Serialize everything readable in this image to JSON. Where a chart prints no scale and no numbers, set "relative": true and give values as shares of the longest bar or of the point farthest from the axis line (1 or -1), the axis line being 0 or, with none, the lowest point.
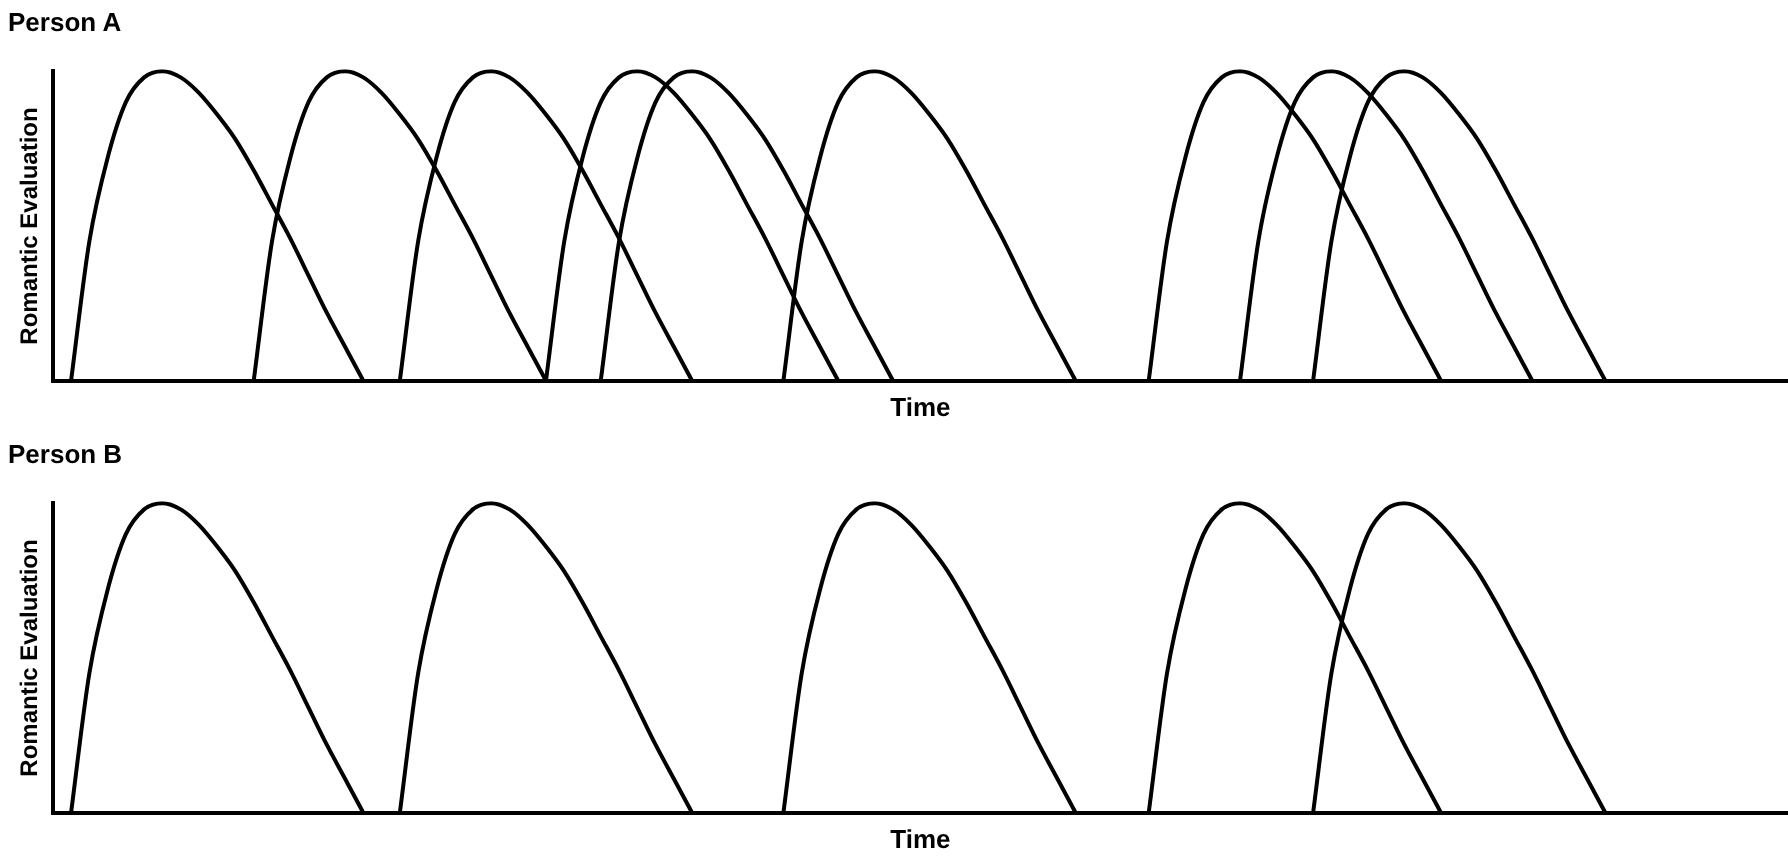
{
  "chart_data": [
    {
      "type": "line",
      "title": "Person A",
      "xlabel": "Time",
      "ylabel": "Romantic Evaluation",
      "relative": true,
      "legend": false,
      "grid": false,
      "tick_labels": false,
      "marker": "none",
      "line_style": "solid",
      "categories": [
        null,
        null,
        null,
        null,
        null,
        null,
        null,
        null,
        null,
        null,
        null,
        null,
        null,
        null,
        null,
        null,
        null,
        null,
        null,
        null,
        null,
        null,
        null,
        null,
        null,
        null,
        null,
        null,
        null,
        null,
        null,
        null,
        null,
        null,
        null,
        null,
        null,
        null,
        null,
        null,
        null,
        null,
        null,
        null,
        null,
        null,
        null,
        null,
        null,
        null,
        null,
        null,
        null,
        null,
        null,
        null,
        null,
        null,
        null,
        null,
        null,
        null,
        null,
        null,
        null,
        null,
        null,
        null,
        null,
        null,
        null,
        null,
        null,
        null,
        null,
        null,
        null,
        null,
        null,
        null,
        null,
        null,
        null,
        null,
        null,
        null,
        null,
        null,
        null,
        null,
        null,
        null,
        null,
        null,
        null,
        null
      ],
      "series": [
        {
          "color": "#000000",
          "values": [
            null,
            0,
            0.45,
            0.72,
            0.9,
            0.98,
            1,
            0.98,
            0.93,
            0.86,
            0.78,
            0.68,
            0.57,
            0.46,
            0.34,
            0.22,
            0.11,
            0,
            null,
            null,
            null,
            null,
            null,
            null,
            null,
            null,
            null,
            null,
            null,
            null,
            null,
            null,
            null,
            null,
            null,
            null,
            null,
            null,
            null,
            null,
            null,
            null,
            null,
            null,
            null,
            null,
            null,
            null,
            null,
            null,
            null,
            null,
            null,
            null,
            null,
            null,
            null,
            null,
            null,
            null,
            null,
            null,
            null,
            null,
            null,
            null,
            null,
            null,
            null,
            null,
            null,
            null,
            null,
            null,
            null,
            null,
            null,
            null,
            null,
            null,
            null,
            null,
            null,
            null,
            null,
            null,
            null,
            null,
            null,
            null,
            null,
            null,
            null,
            null,
            null,
            null
          ]
        },
        {
          "color": "#000000",
          "values": [
            null,
            null,
            null,
            null,
            null,
            null,
            null,
            null,
            null,
            null,
            null,
            0,
            0.45,
            0.72,
            0.9,
            0.98,
            1,
            0.98,
            0.93,
            0.86,
            0.78,
            0.68,
            0.57,
            0.46,
            0.34,
            0.22,
            0.11,
            0,
            null,
            null,
            null,
            null,
            null,
            null,
            null,
            null,
            null,
            null,
            null,
            null,
            null,
            null,
            null,
            null,
            null,
            null,
            null,
            null,
            null,
            null,
            null,
            null,
            null,
            null,
            null,
            null,
            null,
            null,
            null,
            null,
            null,
            null,
            null,
            null,
            null,
            null,
            null,
            null,
            null,
            null,
            null,
            null,
            null,
            null,
            null,
            null,
            null,
            null,
            null,
            null,
            null,
            null,
            null,
            null,
            null,
            null,
            null,
            null,
            null,
            null,
            null,
            null,
            null,
            null,
            null,
            null
          ]
        },
        {
          "color": "#000000",
          "values": [
            null,
            null,
            null,
            null,
            null,
            null,
            null,
            null,
            null,
            null,
            null,
            null,
            null,
            null,
            null,
            null,
            null,
            null,
            null,
            0,
            0.45,
            0.72,
            0.9,
            0.98,
            1,
            0.98,
            0.93,
            0.86,
            0.78,
            0.68,
            0.57,
            0.46,
            0.34,
            0.22,
            0.11,
            0,
            null,
            null,
            null,
            null,
            null,
            null,
            null,
            null,
            null,
            null,
            null,
            null,
            null,
            null,
            null,
            null,
            null,
            null,
            null,
            null,
            null,
            null,
            null,
            null,
            null,
            null,
            null,
            null,
            null,
            null,
            null,
            null,
            null,
            null,
            null,
            null,
            null,
            null,
            null,
            null,
            null,
            null,
            null,
            null,
            null,
            null,
            null,
            null,
            null,
            null,
            null,
            null,
            null,
            null,
            null,
            null,
            null,
            null,
            null,
            null
          ]
        },
        {
          "color": "#000000",
          "values": [
            null,
            null,
            null,
            null,
            null,
            null,
            null,
            null,
            null,
            null,
            null,
            null,
            null,
            null,
            null,
            null,
            null,
            null,
            null,
            null,
            null,
            null,
            null,
            null,
            null,
            null,
            null,
            0,
            0.45,
            0.72,
            0.9,
            0.98,
            1,
            0.98,
            0.93,
            0.86,
            0.78,
            0.68,
            0.57,
            0.46,
            0.34,
            0.22,
            0.11,
            0,
            null,
            null,
            null,
            null,
            null,
            null,
            null,
            null,
            null,
            null,
            null,
            null,
            null,
            null,
            null,
            null,
            null,
            null,
            null,
            null,
            null,
            null,
            null,
            null,
            null,
            null,
            null,
            null,
            null,
            null,
            null,
            null,
            null,
            null,
            null,
            null,
            null,
            null,
            null,
            null,
            null,
            null,
            null,
            null,
            null,
            null,
            null,
            null,
            null,
            null,
            null,
            null
          ]
        },
        {
          "color": "#000000",
          "values": [
            null,
            null,
            null,
            null,
            null,
            null,
            null,
            null,
            null,
            null,
            null,
            null,
            null,
            null,
            null,
            null,
            null,
            null,
            null,
            null,
            null,
            null,
            null,
            null,
            null,
            null,
            null,
            null,
            null,
            null,
            0,
            0.45,
            0.72,
            0.9,
            0.98,
            1,
            0.98,
            0.93,
            0.86,
            0.78,
            0.68,
            0.57,
            0.46,
            0.34,
            0.22,
            0.11,
            0,
            null,
            null,
            null,
            null,
            null,
            null,
            null,
            null,
            null,
            null,
            null,
            null,
            null,
            null,
            null,
            null,
            null,
            null,
            null,
            null,
            null,
            null,
            null,
            null,
            null,
            null,
            null,
            null,
            null,
            null,
            null,
            null,
            null,
            null,
            null,
            null,
            null,
            null,
            null,
            null,
            null,
            null,
            null,
            null,
            null,
            null,
            null,
            null,
            null
          ]
        },
        {
          "color": "#000000",
          "values": [
            null,
            null,
            null,
            null,
            null,
            null,
            null,
            null,
            null,
            null,
            null,
            null,
            null,
            null,
            null,
            null,
            null,
            null,
            null,
            null,
            null,
            null,
            null,
            null,
            null,
            null,
            null,
            null,
            null,
            null,
            null,
            null,
            null,
            null,
            null,
            null,
            null,
            null,
            null,
            null,
            0,
            0.45,
            0.72,
            0.9,
            0.98,
            1,
            0.98,
            0.93,
            0.86,
            0.78,
            0.68,
            0.57,
            0.46,
            0.34,
            0.22,
            0.11,
            0,
            null,
            null,
            null,
            null,
            null,
            null,
            null,
            null,
            null,
            null,
            null,
            null,
            null,
            null,
            null,
            null,
            null,
            null,
            null,
            null,
            null,
            null,
            null,
            null,
            null,
            null,
            null,
            null,
            null,
            null,
            null,
            null,
            null,
            null,
            null,
            null,
            null,
            null,
            null
          ]
        },
        {
          "color": "#000000",
          "values": [
            null,
            null,
            null,
            null,
            null,
            null,
            null,
            null,
            null,
            null,
            null,
            null,
            null,
            null,
            null,
            null,
            null,
            null,
            null,
            null,
            null,
            null,
            null,
            null,
            null,
            null,
            null,
            null,
            null,
            null,
            null,
            null,
            null,
            null,
            null,
            null,
            null,
            null,
            null,
            null,
            null,
            null,
            null,
            null,
            null,
            null,
            null,
            null,
            null,
            null,
            null,
            null,
            null,
            null,
            null,
            null,
            null,
            null,
            null,
            null,
            0,
            0.45,
            0.72,
            0.9,
            0.98,
            1,
            0.98,
            0.93,
            0.86,
            0.78,
            0.68,
            0.57,
            0.46,
            0.34,
            0.22,
            0.11,
            0,
            null,
            null,
            null,
            null,
            null,
            null,
            null,
            null,
            null,
            null,
            null,
            null,
            null,
            null,
            null,
            null,
            null,
            null,
            null
          ]
        },
        {
          "color": "#000000",
          "values": [
            null,
            null,
            null,
            null,
            null,
            null,
            null,
            null,
            null,
            null,
            null,
            null,
            null,
            null,
            null,
            null,
            null,
            null,
            null,
            null,
            null,
            null,
            null,
            null,
            null,
            null,
            null,
            null,
            null,
            null,
            null,
            null,
            null,
            null,
            null,
            null,
            null,
            null,
            null,
            null,
            null,
            null,
            null,
            null,
            null,
            null,
            null,
            null,
            null,
            null,
            null,
            null,
            null,
            null,
            null,
            null,
            null,
            null,
            null,
            null,
            null,
            null,
            null,
            null,
            null,
            0,
            0.45,
            0.72,
            0.9,
            0.98,
            1,
            0.98,
            0.93,
            0.86,
            0.78,
            0.68,
            0.57,
            0.46,
            0.34,
            0.22,
            0.11,
            0,
            null,
            null,
            null,
            null,
            null,
            null,
            null,
            null,
            null,
            null,
            null,
            null,
            null,
            null
          ]
        },
        {
          "color": "#000000",
          "values": [
            null,
            null,
            null,
            null,
            null,
            null,
            null,
            null,
            null,
            null,
            null,
            null,
            null,
            null,
            null,
            null,
            null,
            null,
            null,
            null,
            null,
            null,
            null,
            null,
            null,
            null,
            null,
            null,
            null,
            null,
            null,
            null,
            null,
            null,
            null,
            null,
            null,
            null,
            null,
            null,
            null,
            null,
            null,
            null,
            null,
            null,
            null,
            null,
            null,
            null,
            null,
            null,
            null,
            null,
            null,
            null,
            null,
            null,
            null,
            null,
            null,
            null,
            null,
            null,
            null,
            null,
            null,
            null,
            null,
            0,
            0.45,
            0.72,
            0.9,
            0.98,
            1,
            0.98,
            0.93,
            0.86,
            0.78,
            0.68,
            0.57,
            0.46,
            0.34,
            0.22,
            0.11,
            0,
            null,
            null,
            null,
            null,
            null,
            null,
            null,
            null,
            null,
            null
          ]
        }
      ]
    },
    {
      "type": "line",
      "title": "Person B",
      "xlabel": "Time",
      "ylabel": "Romantic Evaluation",
      "relative": true,
      "legend": false,
      "grid": false,
      "tick_labels": false,
      "marker": "none",
      "line_style": "solid",
      "categories": [
        null,
        null,
        null,
        null,
        null,
        null,
        null,
        null,
        null,
        null,
        null,
        null,
        null,
        null,
        null,
        null,
        null,
        null,
        null,
        null,
        null,
        null,
        null,
        null,
        null,
        null,
        null,
        null,
        null,
        null,
        null,
        null,
        null,
        null,
        null,
        null,
        null,
        null,
        null,
        null,
        null,
        null,
        null,
        null,
        null,
        null,
        null,
        null,
        null,
        null,
        null,
        null,
        null,
        null,
        null,
        null,
        null,
        null,
        null,
        null,
        null,
        null,
        null,
        null,
        null,
        null,
        null,
        null,
        null,
        null,
        null,
        null,
        null,
        null,
        null,
        null,
        null,
        null,
        null,
        null,
        null,
        null,
        null,
        null,
        null,
        null,
        null,
        null,
        null,
        null,
        null,
        null,
        null,
        null,
        null,
        null
      ],
      "series": [
        {
          "color": "#000000",
          "values": [
            null,
            0,
            0.45,
            0.72,
            0.9,
            0.98,
            1,
            0.98,
            0.93,
            0.86,
            0.78,
            0.68,
            0.57,
            0.46,
            0.34,
            0.22,
            0.11,
            0,
            null,
            null,
            null,
            null,
            null,
            null,
            null,
            null,
            null,
            null,
            null,
            null,
            null,
            null,
            null,
            null,
            null,
            null,
            null,
            null,
            null,
            null,
            null,
            null,
            null,
            null,
            null,
            null,
            null,
            null,
            null,
            null,
            null,
            null,
            null,
            null,
            null,
            null,
            null,
            null,
            null,
            null,
            null,
            null,
            null,
            null,
            null,
            null,
            null,
            null,
            null,
            null,
            null,
            null,
            null,
            null,
            null,
            null,
            null,
            null,
            null,
            null,
            null,
            null,
            null,
            null,
            null,
            null,
            null,
            null,
            null,
            null,
            null,
            null,
            null,
            null,
            null,
            null
          ]
        },
        {
          "color": "#000000",
          "values": [
            null,
            null,
            null,
            null,
            null,
            null,
            null,
            null,
            null,
            null,
            null,
            null,
            null,
            null,
            null,
            null,
            null,
            null,
            null,
            0,
            0.45,
            0.72,
            0.9,
            0.98,
            1,
            0.98,
            0.93,
            0.86,
            0.78,
            0.68,
            0.57,
            0.46,
            0.34,
            0.22,
            0.11,
            0,
            null,
            null,
            null,
            null,
            null,
            null,
            null,
            null,
            null,
            null,
            null,
            null,
            null,
            null,
            null,
            null,
            null,
            null,
            null,
            null,
            null,
            null,
            null,
            null,
            null,
            null,
            null,
            null,
            null,
            null,
            null,
            null,
            null,
            null,
            null,
            null,
            null,
            null,
            null,
            null,
            null,
            null,
            null,
            null,
            null,
            null,
            null,
            null,
            null,
            null,
            null,
            null,
            null,
            null,
            null,
            null,
            null,
            null,
            null,
            null
          ]
        },
        {
          "color": "#000000",
          "values": [
            null,
            null,
            null,
            null,
            null,
            null,
            null,
            null,
            null,
            null,
            null,
            null,
            null,
            null,
            null,
            null,
            null,
            null,
            null,
            null,
            null,
            null,
            null,
            null,
            null,
            null,
            null,
            null,
            null,
            null,
            null,
            null,
            null,
            null,
            null,
            null,
            null,
            null,
            null,
            null,
            0,
            0.45,
            0.72,
            0.9,
            0.98,
            1,
            0.98,
            0.93,
            0.86,
            0.78,
            0.68,
            0.57,
            0.46,
            0.34,
            0.22,
            0.11,
            0,
            null,
            null,
            null,
            null,
            null,
            null,
            null,
            null,
            null,
            null,
            null,
            null,
            null,
            null,
            null,
            null,
            null,
            null,
            null,
            null,
            null,
            null,
            null,
            null,
            null,
            null,
            null,
            null,
            null,
            null,
            null,
            null,
            null,
            null,
            null,
            null,
            null,
            null,
            null
          ]
        },
        {
          "color": "#000000",
          "values": [
            null,
            null,
            null,
            null,
            null,
            null,
            null,
            null,
            null,
            null,
            null,
            null,
            null,
            null,
            null,
            null,
            null,
            null,
            null,
            null,
            null,
            null,
            null,
            null,
            null,
            null,
            null,
            null,
            null,
            null,
            null,
            null,
            null,
            null,
            null,
            null,
            null,
            null,
            null,
            null,
            null,
            null,
            null,
            null,
            null,
            null,
            null,
            null,
            null,
            null,
            null,
            null,
            null,
            null,
            null,
            null,
            null,
            null,
            null,
            null,
            0,
            0.45,
            0.72,
            0.9,
            0.98,
            1,
            0.98,
            0.93,
            0.86,
            0.78,
            0.68,
            0.57,
            0.46,
            0.34,
            0.22,
            0.11,
            0,
            null,
            null,
            null,
            null,
            null,
            null,
            null,
            null,
            null,
            null,
            null,
            null,
            null,
            null,
            null,
            null,
            null,
            null,
            null
          ]
        },
        {
          "color": "#000000",
          "values": [
            null,
            null,
            null,
            null,
            null,
            null,
            null,
            null,
            null,
            null,
            null,
            null,
            null,
            null,
            null,
            null,
            null,
            null,
            null,
            null,
            null,
            null,
            null,
            null,
            null,
            null,
            null,
            null,
            null,
            null,
            null,
            null,
            null,
            null,
            null,
            null,
            null,
            null,
            null,
            null,
            null,
            null,
            null,
            null,
            null,
            null,
            null,
            null,
            null,
            null,
            null,
            null,
            null,
            null,
            null,
            null,
            null,
            null,
            null,
            null,
            null,
            null,
            null,
            null,
            null,
            null,
            null,
            null,
            null,
            0,
            0.45,
            0.72,
            0.9,
            0.98,
            1,
            0.98,
            0.93,
            0.86,
            0.78,
            0.68,
            0.57,
            0.46,
            0.34,
            0.22,
            0.11,
            0,
            null,
            null,
            null,
            null,
            null,
            null,
            null,
            null,
            null,
            null
          ]
        }
      ]
    }
  ]
}
